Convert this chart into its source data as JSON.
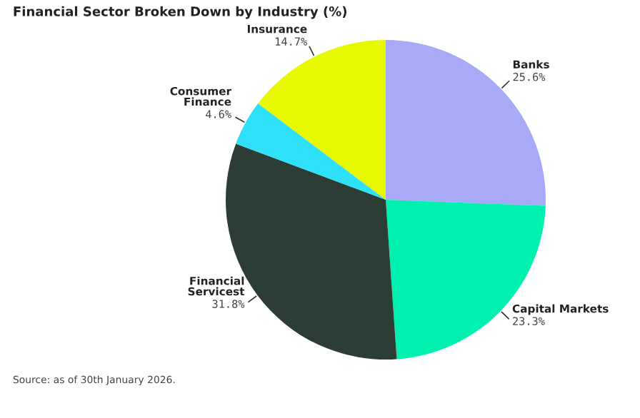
{
  "chart_data": {
    "type": "pie",
    "title": "Financial Sector Broken Down by Industry (%)",
    "categories": [
      "Banks",
      "Capital Markets",
      "Financial\nServicest",
      "Consumer\nFinance",
      "Insurance"
    ],
    "values": [
      25.6,
      23.3,
      31.8,
      4.6,
      14.7
    ],
    "value_labels": [
      "25.6%",
      "23.3%",
      "31.8%",
      "4.6%",
      "14.7%"
    ],
    "colors": [
      "#a8aaf8",
      "#00f0b0",
      "#2b3d35",
      "#2ee0f8",
      "#e8f800"
    ],
    "annotations": [
      "Source: as of 30th January 2026."
    ]
  }
}
